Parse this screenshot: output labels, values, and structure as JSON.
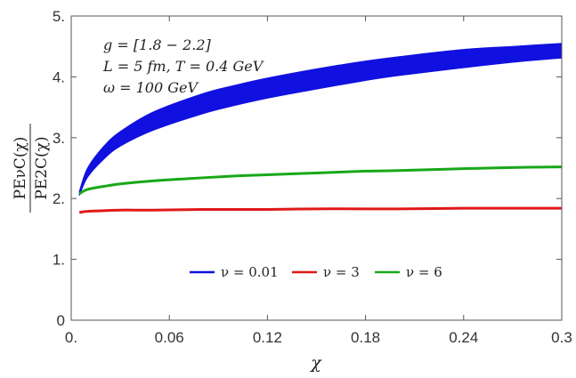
{
  "chart_data": {
    "type": "line",
    "title": "",
    "xlabel": "χ",
    "ylabel_numerator": "PEνC(χ)",
    "ylabel_denominator": "PE2C(χ)",
    "xlim": [
      0,
      0.3
    ],
    "ylim": [
      0,
      5
    ],
    "xticks": [
      0,
      0.06,
      0.12,
      0.18,
      0.24,
      0.3
    ],
    "xtick_labels": [
      "0.",
      "0.06",
      "0.12",
      "0.18",
      "0.24",
      "0.3"
    ],
    "yticks": [
      0,
      1,
      2,
      3,
      4,
      5
    ],
    "ytick_labels": [
      "0",
      "1.",
      "2.",
      "3.",
      "4.",
      "5."
    ],
    "grid": false,
    "legend_position": "bottom-center",
    "annotations": [
      "g = [1.8 − 2.2]",
      "L = 5 fm, T = 0.4 GeV",
      "ω = 100 GeV"
    ],
    "x": [
      0.005,
      0.01,
      0.02,
      0.03,
      0.05,
      0.08,
      0.1,
      0.12,
      0.15,
      0.18,
      0.2,
      0.24,
      0.27,
      0.3
    ],
    "series": [
      {
        "name": "ν = 0.01",
        "color": "#1010e0",
        "band": true,
        "lower": [
          2.05,
          2.35,
          2.65,
          2.86,
          3.12,
          3.39,
          3.53,
          3.65,
          3.8,
          3.94,
          4.02,
          4.15,
          4.24,
          4.31
        ],
        "upper": [
          2.12,
          2.5,
          2.86,
          3.1,
          3.42,
          3.72,
          3.86,
          3.98,
          4.13,
          4.26,
          4.33,
          4.45,
          4.5,
          4.55
        ]
      },
      {
        "name": "ν = 3",
        "color": "#e01818",
        "band": false,
        "values": [
          1.77,
          1.79,
          1.8,
          1.81,
          1.81,
          1.82,
          1.82,
          1.82,
          1.83,
          1.83,
          1.83,
          1.84,
          1.84,
          1.84
        ]
      },
      {
        "name": "ν = 6",
        "color": "#18a818",
        "band": false,
        "values": [
          2.08,
          2.15,
          2.2,
          2.24,
          2.29,
          2.34,
          2.37,
          2.39,
          2.42,
          2.45,
          2.46,
          2.49,
          2.51,
          2.52
        ]
      }
    ]
  }
}
